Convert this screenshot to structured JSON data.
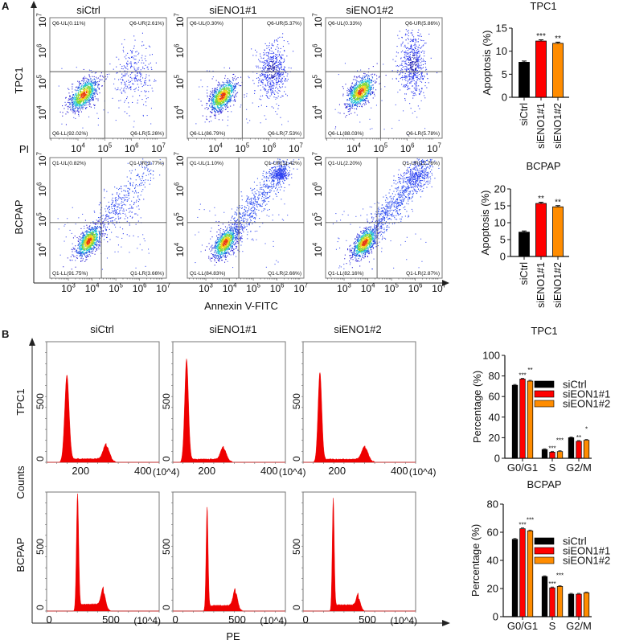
{
  "panel_labels": [
    "A",
    "B"
  ],
  "chart_data": [
    {
      "type": "scatter",
      "panel": "A",
      "xlabel": "Annexin V-FITC",
      "ylabel": "PI",
      "x_scale": "log",
      "y_scale": "log",
      "tick_base": "10",
      "columns": [
        "siCtrl",
        "siENO1#1",
        "siENO1#2"
      ],
      "rows": [
        {
          "name": "TPC1",
          "x_tick_exponents": [
            4,
            5,
            6,
            7
          ],
          "y_tick_exponents": [
            4,
            5,
            6,
            7
          ],
          "x_range_log10": [
            2.95,
            7.3
          ],
          "y_range_log10": [
            3.17,
            7.08
          ],
          "gate_log10": [
            5.0,
            5.33
          ]
        },
        {
          "name": "BCPAP",
          "x_tick_exponents": [
            3,
            4,
            5,
            6,
            7
          ],
          "y_tick_exponents": [
            4,
            5,
            6,
            7
          ],
          "x_range_log10": [
            2.22,
            7.13
          ],
          "y_range_log10": [
            3.06,
            7.05
          ],
          "gate_log10": [
            4.39,
            4.9
          ]
        }
      ],
      "plots": [
        {
          "row": 0,
          "col": 0,
          "UL": "Q6-UL(0.11%)",
          "UR": "Q6-UR(2.61%)",
          "LL": "Q6-LL(92.02%)",
          "LR": "Q6-LR(5.26%)"
        },
        {
          "row": 0,
          "col": 1,
          "UL": "Q6-UL(0.30%)",
          "UR": "Q6-UR(5.37%)",
          "LL": "Q6-LL(86.79%)",
          "LR": "Q6-LR(7.53%)"
        },
        {
          "row": 0,
          "col": 2,
          "UL": "Q6-UL(0.33%)",
          "UR": "Q6-UR(5.86%)",
          "LL": "Q6-LL(88.03%)",
          "LR": "Q6-LR(5.78%)"
        },
        {
          "row": 1,
          "col": 0,
          "UL": "Q1-UL(0.82%)",
          "UR": "Q1-UR(3.77%)",
          "LL": "Q1-LL(91.75%)",
          "LR": "Q1-LR(3.66%)"
        },
        {
          "row": 1,
          "col": 1,
          "UL": "Q1-UL(1.10%)",
          "UR": "Q1-UR(11.42%)",
          "LL": "Q1-LL(84.83%)",
          "LR": "Q1-LR(2.66%)"
        },
        {
          "row": 1,
          "col": 2,
          "UL": "Q1-UL(2.20%)",
          "UR": "Q1-UR(12.76%)",
          "LL": "Q1-LL(82.16%)",
          "LR": "Q1-LR(2.87%)"
        }
      ]
    },
    {
      "type": "bar",
      "panel": "A",
      "title": "TPC1",
      "ylabel": "Apoptosis (%)",
      "categories": [
        "siCtrl",
        "siENO1#1",
        "siENO1#2"
      ],
      "values": [
        7.6,
        12.2,
        11.7
      ],
      "significance": [
        "",
        "***",
        "**"
      ],
      "ylim": [
        0,
        15
      ],
      "yticks": [
        0,
        5,
        10,
        15
      ],
      "colors": [
        "#000000",
        "#ff0000",
        "#ff8c00"
      ]
    },
    {
      "type": "bar",
      "panel": "A",
      "title": "BCPAP",
      "ylabel": "Apoptosis (%)",
      "categories": [
        "siCtrl",
        "siENO1#1",
        "siENO1#2"
      ],
      "values": [
        7.2,
        15.7,
        14.7
      ],
      "significance": [
        "",
        "**",
        "**"
      ],
      "ylim": [
        0,
        20
      ],
      "yticks": [
        0,
        5,
        10,
        15,
        20
      ],
      "colors": [
        "#000000",
        "#ff0000",
        "#ff8c00"
      ]
    },
    {
      "type": "area",
      "panel": "B",
      "xlabel": "PE",
      "ylabel": "Counts",
      "columns": [
        "siCtrl",
        "siENO1#1",
        "siENO1#2"
      ],
      "fill_color": "#ee0000",
      "rows": [
        {
          "name": "TPC1",
          "x_ticks": [
            "200",
            "400"
          ],
          "x_unit": "(10^4)",
          "y_ticks": [
            "0",
            "500"
          ],
          "xlim": [
            91,
            452
          ],
          "ylim": [
            0,
            990
          ]
        },
        {
          "name": "BCPAP",
          "x_ticks": [
            "0",
            "500"
          ],
          "x_unit": "(10^4)",
          "y_ticks": [
            "0",
            "500"
          ],
          "xlim": [
            -20,
            890
          ],
          "ylim": [
            0,
            925
          ]
        }
      ]
    },
    {
      "type": "bar",
      "panel": "B",
      "title": "TPC1",
      "ylabel": "Percentage (%)",
      "categories": [
        "G0/G1",
        "S",
        "G2/M"
      ],
      "series": [
        {
          "name": "siCtrl",
          "values": [
            71,
            8.5,
            20
          ],
          "significance": [
            "",
            "",
            ""
          ]
        },
        {
          "name": "siEON1#1",
          "values": [
            77,
            6,
            16.5
          ],
          "significance": [
            "***",
            "***",
            "**"
          ]
        },
        {
          "name": "siEON1#2",
          "values": [
            75,
            6.5,
            17.5
          ],
          "significance": [
            "**",
            "***",
            "*"
          ]
        }
      ],
      "ylim": [
        0,
        100
      ],
      "yticks": [
        0,
        20,
        40,
        60,
        80,
        100
      ],
      "legend": "right",
      "colors": [
        "#000000",
        "#ff0000",
        "#ff8c00"
      ]
    },
    {
      "type": "bar",
      "panel": "B",
      "title": "BCPAP",
      "ylabel": "Percentage (%)",
      "categories": [
        "G0/G1",
        "S",
        "G2/M"
      ],
      "series": [
        {
          "name": "siCtrl",
          "values": [
            55,
            28.5,
            16
          ],
          "significance": [
            "",
            "",
            ""
          ]
        },
        {
          "name": "siEON1#1",
          "values": [
            62.5,
            20.5,
            16
          ],
          "significance": [
            "***",
            "***",
            ""
          ]
        },
        {
          "name": "siEON1#2",
          "values": [
            61,
            21.5,
            17
          ],
          "significance": [
            "***",
            "***",
            ""
          ]
        }
      ],
      "ylim": [
        0,
        80
      ],
      "yticks": [
        0,
        20,
        40,
        60,
        80
      ],
      "legend": "right",
      "colors": [
        "#000000",
        "#ff0000",
        "#ff8c00"
      ]
    }
  ]
}
